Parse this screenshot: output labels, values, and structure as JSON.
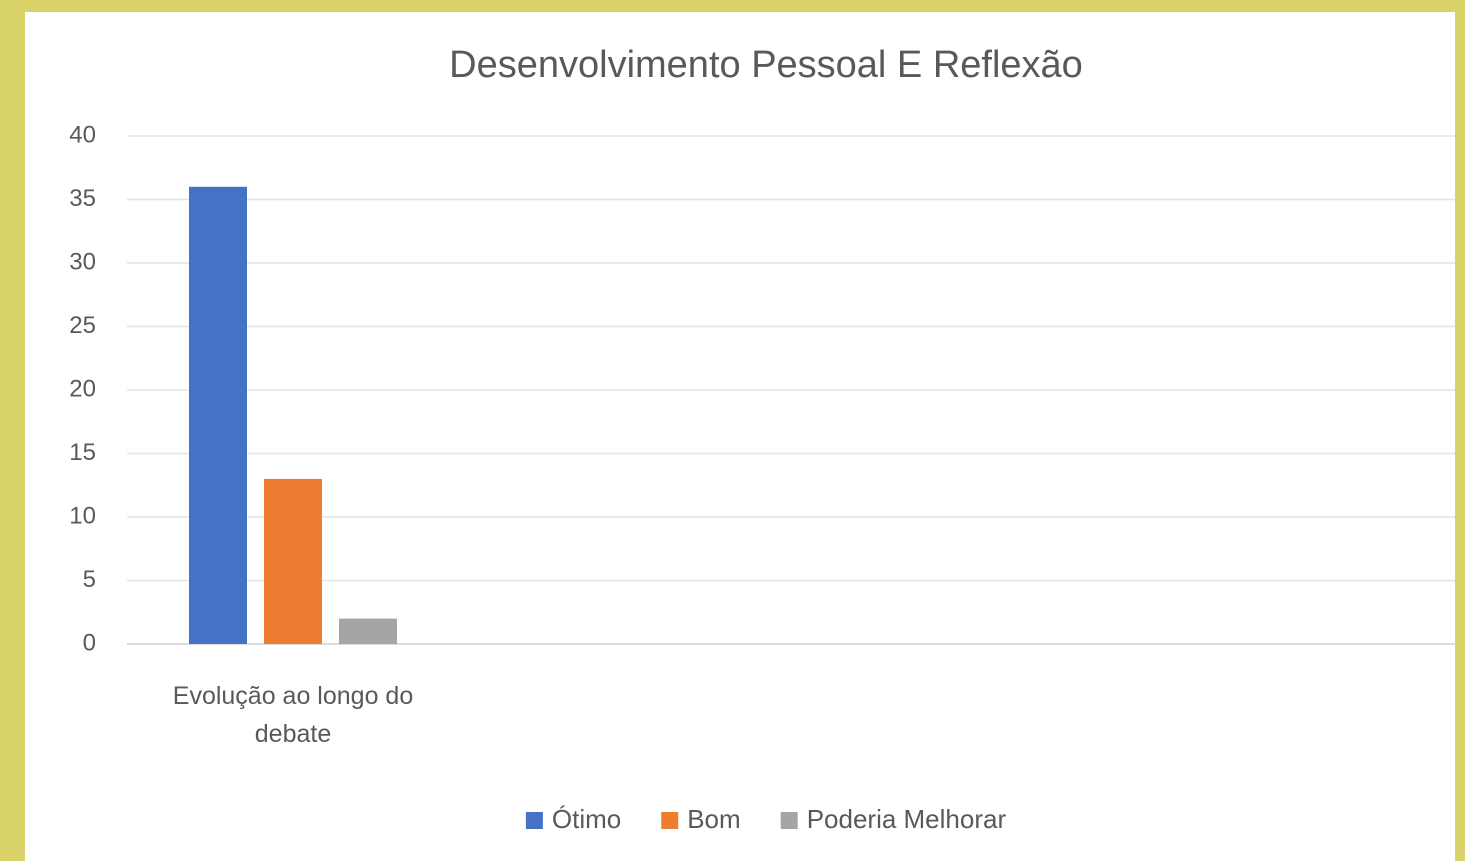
{
  "chart_data": {
    "type": "bar",
    "title": "Desenvolvimento Pessoal  E Reflexão",
    "categories": [
      "Evolução ao longo do debate",
      null,
      null,
      null
    ],
    "series": [
      {
        "name": "Ótimo",
        "color": "#4472c4",
        "values": [
          36,
          null,
          null,
          null
        ]
      },
      {
        "name": "Bom",
        "color": "#ed7d31",
        "values": [
          13,
          null,
          null,
          null
        ]
      },
      {
        "name": "Poderia Melhorar",
        "color": "#a5a5a5",
        "values": [
          2,
          null,
          null,
          null
        ]
      }
    ],
    "ylim": [
      0,
      40
    ],
    "yticks": [
      0,
      5,
      10,
      15,
      20,
      25,
      30,
      35,
      40
    ],
    "grid": true,
    "legend": "bottom"
  }
}
